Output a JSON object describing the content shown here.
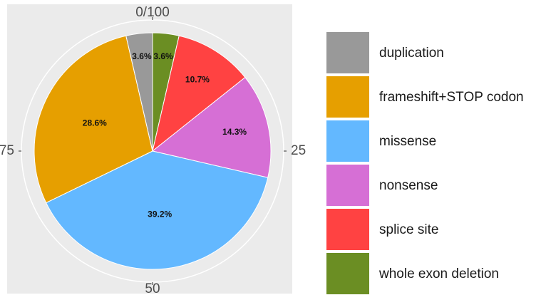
{
  "chart_data": {
    "type": "pie",
    "categories": [
      "duplication",
      "frameshift+STOP codon",
      "missense",
      "nonsense",
      "splice site",
      "whole exon deletion"
    ],
    "values": [
      3.6,
      28.6,
      39.2,
      14.3,
      10.7,
      3.6
    ],
    "value_labels": [
      "3.6%",
      "28.6%",
      "39.2%",
      "14.3%",
      "10.7%",
      "3.6%"
    ],
    "colors": [
      "#999999",
      "#E69F00",
      "#63B8FF",
      "#D66FD5",
      "#FF4242",
      "#6B8E23"
    ],
    "ylim": [
      0,
      100
    ],
    "yticks": [
      {
        "value": 0,
        "label": "0/100"
      },
      25,
      50,
      75
    ]
  }
}
